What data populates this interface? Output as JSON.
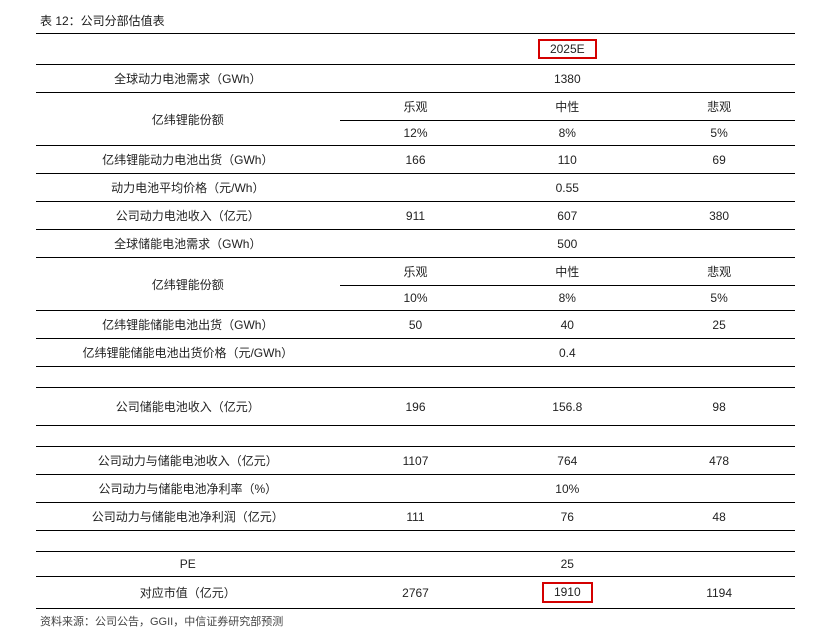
{
  "title": "表 12：公司分部估值表",
  "year_header": "2025E",
  "source": "资料来源：公司公告，GGII，中信证券研究部预测",
  "labels": {
    "global_demand": "全球动力电池需求（GWh）",
    "share1": "亿纬锂能份额",
    "ev_ship": "亿纬锂能动力电池出货（GWh）",
    "avg_price": "动力电池平均价格（元/Wh）",
    "ev_rev": "公司动力电池收入（亿元）",
    "ess_demand": "全球储能电池需求（GWh）",
    "share2": "亿纬锂能份额",
    "ess_ship": "亿纬锂能储能电池出货（GWh）",
    "ess_price": "亿纬锂能储能电池出货价格（元/GWh）",
    "ess_rev": "公司储能电池收入（亿元）",
    "total_rev": "公司动力与储能电池收入（亿元）",
    "margin": "公司动力与储能电池净利率（%）",
    "net_profit": "公司动力与储能电池净利润（亿元）",
    "pe": "PE",
    "mktcap": "对应市值（亿元）"
  },
  "scenarios": {
    "opt": "乐观",
    "neu": "中性",
    "pes": "悲观"
  },
  "vals": {
    "global_demand": "1380",
    "share1": {
      "opt": "12%",
      "neu": "8%",
      "pes": "5%"
    },
    "ev_ship": {
      "opt": "166",
      "neu": "110",
      "pes": "69"
    },
    "avg_price": "0.55",
    "ev_rev": {
      "opt": "911",
      "neu": "607",
      "pes": "380"
    },
    "ess_demand": "500",
    "share2": {
      "opt": "10%",
      "neu": "8%",
      "pes": "5%"
    },
    "ess_ship": {
      "opt": "50",
      "neu": "40",
      "pes": "25"
    },
    "ess_price": "0.4",
    "ess_rev": {
      "opt": "196",
      "neu": "156.8",
      "pes": "98"
    },
    "total_rev": {
      "opt": "1107",
      "neu": "764",
      "pes": "478"
    },
    "margin": "10%",
    "net_profit": {
      "opt": "111",
      "neu": "76",
      "pes": "48"
    },
    "pe": "25",
    "mktcap": {
      "opt": "2767",
      "neu": "1910",
      "pes": "1194"
    }
  }
}
